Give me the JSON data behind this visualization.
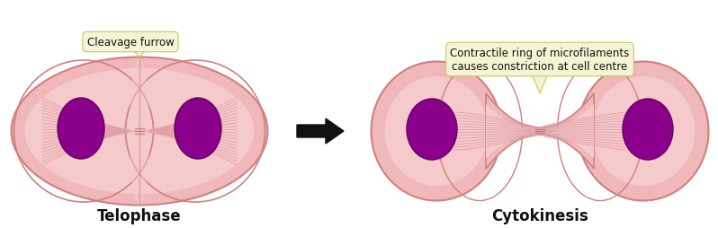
{
  "title_telophase": "Telophase",
  "title_cytokinesis": "Cytokinesis",
  "label_cleavage": "Cleavage furrow",
  "label_contractile": "Contractile ring of microfilaments\ncauses constriction at cell centre",
  "cell_outer_color": "#f0b8b8",
  "cell_mid_color": "#f5caca",
  "cell_inner_color": "#fadadd",
  "cell_edge_color": "#d08080",
  "nucleus_color": "#8b008b",
  "nucleus_edge_color": "#660066",
  "fiber_color": "#e0a0a8",
  "label_box_color": "#f5f5d5",
  "label_box_edge": "#c8c860",
  "arrow_color": "#111111",
  "text_color": "#111111",
  "bg_color": "#ffffff",
  "title_fontsize": 12,
  "label_fontsize": 8.5
}
